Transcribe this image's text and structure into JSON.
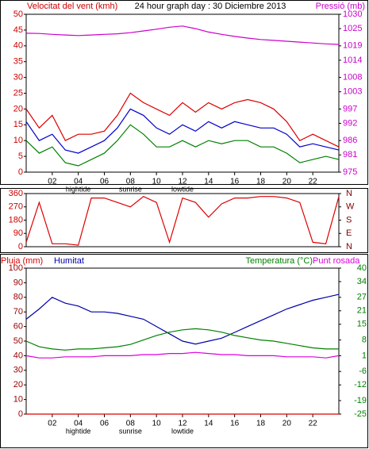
{
  "chart_data": [
    {
      "type": "line",
      "title": "24 hour graph day : 30 Diciembre 2013",
      "ylabel": "Velocitat del vent (kmh)",
      "y2label": "Pressió (mb)",
      "x": [
        0,
        1,
        2,
        3,
        4,
        5,
        6,
        7,
        8,
        9,
        10,
        11,
        12,
        13,
        14,
        15,
        16,
        17,
        18,
        19,
        20,
        21,
        22,
        23,
        24
      ],
      "xlim": [
        0,
        24
      ],
      "xticks": [
        {
          "value": 2,
          "label": "02"
        },
        {
          "value": 4,
          "label": "04"
        },
        {
          "value": 6,
          "label": "06"
        },
        {
          "value": 8,
          "label": "08"
        },
        10,
        12,
        14,
        16,
        18,
        20,
        22
      ],
      "annotations": [
        {
          "text": "hightide",
          "x": 4
        },
        {
          "text": "sunrise",
          "x": 8
        },
        {
          "text": "lowtide",
          "x": 12
        }
      ],
      "ylim": [
        0,
        50
      ],
      "yticks": [
        0,
        5,
        10,
        15,
        20,
        25,
        30,
        35,
        40,
        45,
        50
      ],
      "y2lim": [
        975,
        1030
      ],
      "y2ticks": [
        975,
        981,
        986,
        992,
        997,
        1003,
        1008,
        1014,
        1019,
        1025,
        1030
      ],
      "series": [
        {
          "color": "#dd0000",
          "values": [
            20,
            14,
            18,
            10,
            12,
            12,
            13,
            18,
            25,
            22,
            20,
            18,
            22,
            19,
            22,
            20,
            22,
            23,
            22,
            20,
            16,
            10,
            12,
            10,
            8
          ]
        },
        {
          "color": "#008000",
          "values": [
            10,
            6,
            8,
            3,
            2,
            4,
            6,
            10,
            15,
            12,
            8,
            8,
            10,
            8,
            10,
            9,
            10,
            10,
            8,
            8,
            6,
            3,
            4,
            5,
            4
          ]
        },
        {
          "color": "#0000cc",
          "values": [
            16,
            10,
            12,
            7,
            6,
            8,
            10,
            14,
            20,
            18,
            14,
            12,
            15,
            13,
            16,
            14,
            16,
            15,
            14,
            14,
            12,
            8,
            9,
            8,
            7
          ]
        },
        {
          "color": "#cc00cc",
          "axis": "y2",
          "values": [
            1023.4,
            1023.3,
            1023.0,
            1022.8,
            1022.6,
            1022.8,
            1023.0,
            1023.2,
            1023.6,
            1024.2,
            1024.8,
            1025.5,
            1025.9,
            1025.0,
            1023.8,
            1023.0,
            1022.3,
            1021.7,
            1021.2,
            1020.9,
            1020.6,
            1020.3,
            1020.0,
            1019.7,
            1019.5
          ]
        }
      ]
    },
    {
      "type": "line",
      "x": [
        0,
        1,
        2,
        3,
        4,
        5,
        6,
        7,
        8,
        9,
        10,
        11,
        12,
        13,
        14,
        15,
        16,
        17,
        18,
        19,
        20,
        21,
        22,
        23,
        24
      ],
      "xlim": [
        0,
        24
      ],
      "ylim": [
        0,
        360
      ],
      "yticks": [
        0,
        90,
        180,
        270,
        360
      ],
      "y2lim": [
        0,
        360
      ],
      "y2ticks": [
        {
          "value": 0,
          "label": "N"
        },
        {
          "value": 90,
          "label": "E"
        },
        {
          "value": 180,
          "label": "S"
        },
        {
          "value": 270,
          "label": "W"
        },
        {
          "value": 360,
          "label": "N"
        }
      ],
      "series": [
        {
          "color": "#dd0000",
          "values": [
            30,
            300,
            20,
            20,
            10,
            330,
            330,
            300,
            270,
            340,
            300,
            30,
            330,
            300,
            200,
            290,
            330,
            330,
            340,
            340,
            330,
            300,
            30,
            20,
            340
          ]
        }
      ]
    },
    {
      "type": "line",
      "x": [
        0,
        1,
        2,
        3,
        4,
        5,
        6,
        7,
        8,
        9,
        10,
        11,
        12,
        13,
        14,
        15,
        16,
        17,
        18,
        19,
        20,
        21,
        22,
        23,
        24
      ],
      "xlim": [
        0,
        24
      ],
      "xticks": [
        {
          "value": 2,
          "label": "02"
        },
        {
          "value": 4,
          "label": "04"
        },
        {
          "value": 6,
          "label": "06"
        },
        {
          "value": 8,
          "label": "08"
        },
        10,
        12,
        14,
        16,
        18,
        20,
        22
      ],
      "annotations": [
        {
          "text": "hightide",
          "x": 4
        },
        {
          "text": "sunrise",
          "x": 8
        },
        {
          "text": "lowtide",
          "x": 12
        }
      ],
      "ylim": [
        0,
        100
      ],
      "yticks": [
        0,
        10,
        20,
        30,
        40,
        50,
        60,
        70,
        80,
        90,
        100
      ],
      "y2lim": [
        -25,
        40
      ],
      "y2ticks": [
        -25,
        -19,
        -12,
        -6,
        1,
        8,
        15,
        21,
        27,
        34,
        40
      ],
      "series": [
        {
          "name": "Pluja (mm)",
          "color": "#dd0000",
          "values": [
            0,
            0,
            0,
            0,
            0,
            0,
            0,
            0,
            0,
            0,
            0,
            0,
            0,
            0,
            0,
            0,
            0,
            0,
            0,
            0,
            0,
            0,
            0,
            0,
            0
          ]
        },
        {
          "name": "Humitat",
          "color": "#0000aa",
          "values": [
            65,
            72,
            80,
            76,
            74,
            70,
            70,
            69,
            67,
            65,
            60,
            55,
            50,
            48,
            50,
            52,
            56,
            60,
            64,
            68,
            72,
            75,
            78,
            80,
            82
          ]
        },
        {
          "name": "Temperatura (°C)",
          "color": "#008000",
          "axis": "y2",
          "values": [
            7.5,
            5,
            4,
            3.5,
            4,
            4,
            4.5,
            5,
            6,
            8,
            10,
            11.5,
            12.5,
            13,
            12.5,
            11.5,
            10,
            9,
            8,
            7.5,
            6.5,
            5.5,
            4.5,
            4,
            4
          ]
        },
        {
          "name": "Punt rosada",
          "color": "#dd00dd",
          "axis": "y2",
          "values": [
            1,
            0,
            0,
            0.5,
            0.5,
            0.5,
            1,
            1,
            1,
            1.5,
            1.5,
            2,
            2,
            2.5,
            2,
            1.5,
            1.5,
            1,
            1,
            1,
            0.5,
            0.5,
            0.5,
            0,
            1
          ]
        }
      ]
    }
  ]
}
